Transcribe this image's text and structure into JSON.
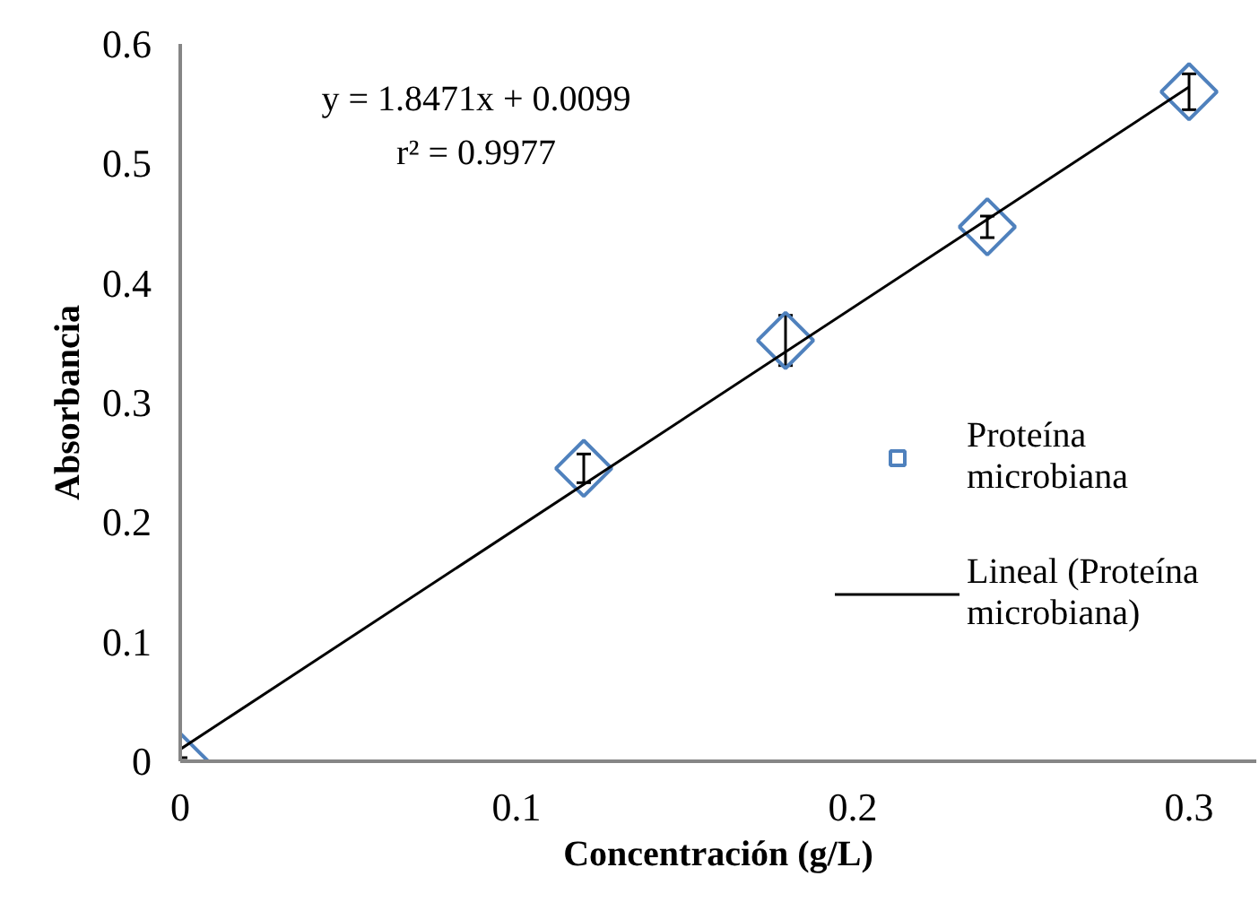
{
  "chart_data": {
    "type": "scatter",
    "xlabel": "Concentración (g/L)",
    "ylabel": "Absorbancia",
    "annotations": [
      "y = 1.8471x + 0.0099",
      "r² = 0.9977"
    ],
    "series": [
      {
        "name": "Proteína microbiana",
        "color": "#4f81bd",
        "marker": "diamond",
        "x": [
          0,
          0.12,
          0.18,
          0.24,
          0.3
        ],
        "values": [
          0,
          0.245,
          0.352,
          0.447,
          0.56
        ],
        "errors": [
          0.003,
          0.012,
          0.021,
          0.009,
          0.015
        ]
      },
      {
        "name": "Lineal (Proteína microbiana)",
        "type": "line",
        "color": "#000000",
        "line_style": "solid",
        "x": [
          0,
          0.3
        ],
        "values": [
          0.01,
          0.564
        ]
      }
    ],
    "xlim": [
      0,
      0.32
    ],
    "ylim": [
      0,
      0.6
    ],
    "xticks": [
      0,
      0.1,
      0.2,
      0.3
    ],
    "yticks": [
      0,
      0.1,
      0.2,
      0.3,
      0.4,
      0.5,
      0.6
    ],
    "grid": false,
    "legend": "right"
  }
}
